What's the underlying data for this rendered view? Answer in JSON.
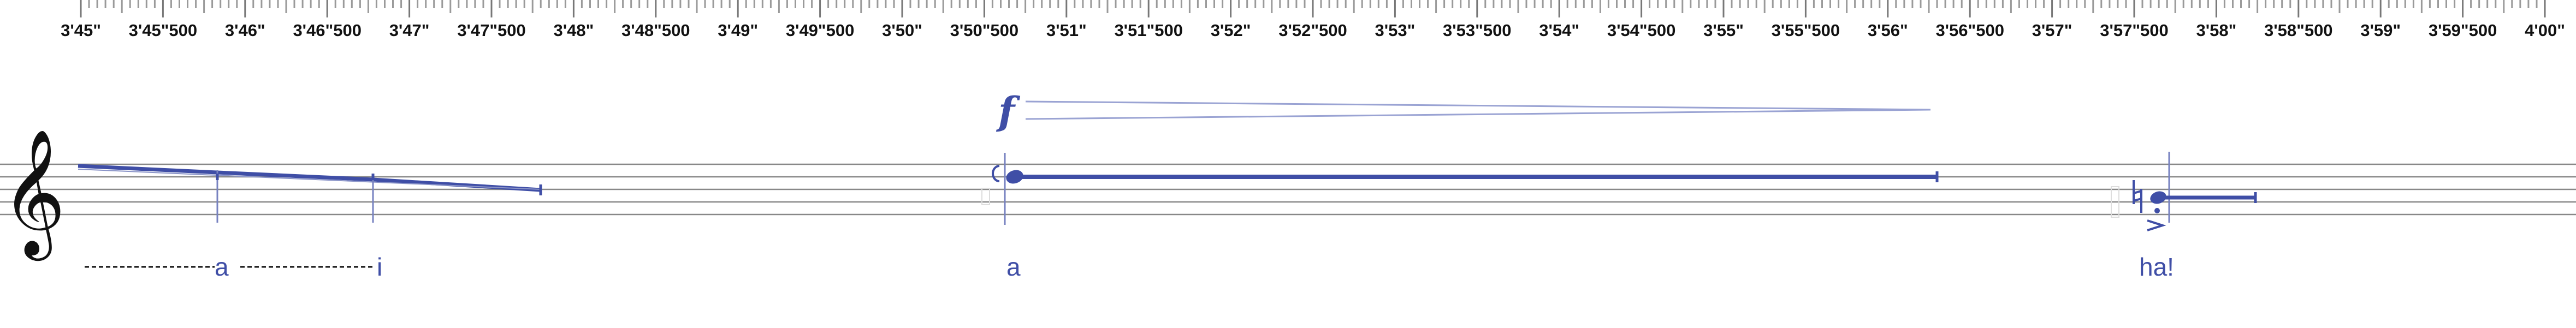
{
  "ruler": {
    "labels": [
      "3'45\"",
      "3'45\"500",
      "3'46\"",
      "3'46\"500",
      "3'47\"",
      "3'47\"500",
      "3'48\"",
      "3'48\"500",
      "3'49\"",
      "3'49\"500",
      "3'50\"",
      "3'50\"500",
      "3'51\"",
      "3'51\"500",
      "3'52\"",
      "3'52\"500",
      "3'53\"",
      "3'53\"500",
      "3'54\"",
      "3'54\"500",
      "3'55\"",
      "3'55\"500",
      "3'56\"",
      "3'56\"500",
      "3'57\"",
      "3'57\"500",
      "3'58\"",
      "3'58\"500",
      "3'59\"",
      "3'59\"500",
      "4'00\""
    ]
  },
  "score": {
    "clef": "treble",
    "color": "#3f4ea6",
    "dynamic": "f",
    "lyrics": {
      "group1_a": "a",
      "group1_i": "i",
      "group2_a": "a",
      "group3_ha": "ha!"
    },
    "icons": {
      "clef": "treble-clef-icon",
      "natural": "natural-sign-icon",
      "accent": "accent-icon"
    }
  }
}
